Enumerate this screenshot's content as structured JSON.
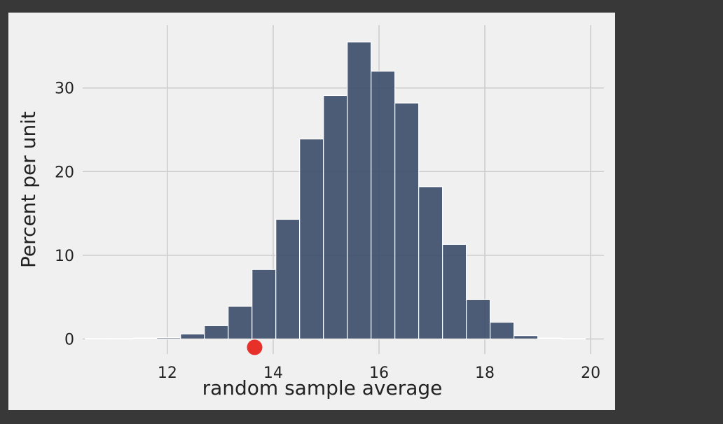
{
  "chart_data": {
    "type": "bar",
    "xlabel": "random sample average",
    "ylabel": "Percent per unit",
    "xlim": [
      10.4,
      20.25
    ],
    "ylim": [
      -1.8,
      37.5
    ],
    "xticks": [
      12,
      14,
      16,
      18,
      20
    ],
    "yticks": [
      0,
      10,
      20,
      30
    ],
    "grid": true,
    "bin_edges": [
      10.45,
      10.9,
      11.35,
      11.8,
      12.25,
      12.7,
      13.15,
      13.6,
      14.05,
      14.5,
      14.95,
      15.4,
      15.85,
      16.3,
      16.75,
      17.2,
      17.65,
      18.1,
      18.55,
      19.0,
      19.45,
      19.9
    ],
    "values": [
      0.05,
      0.05,
      0.1,
      0.15,
      0.6,
      1.6,
      3.9,
      8.3,
      14.3,
      23.9,
      29.1,
      35.5,
      32.0,
      28.2,
      18.2,
      11.3,
      4.7,
      2.0,
      0.4,
      0.1,
      0.05
    ],
    "bar_color": "#3e4e6b",
    "marker": {
      "x": 13.65,
      "y": -1.0,
      "color": "#e8302a"
    }
  }
}
